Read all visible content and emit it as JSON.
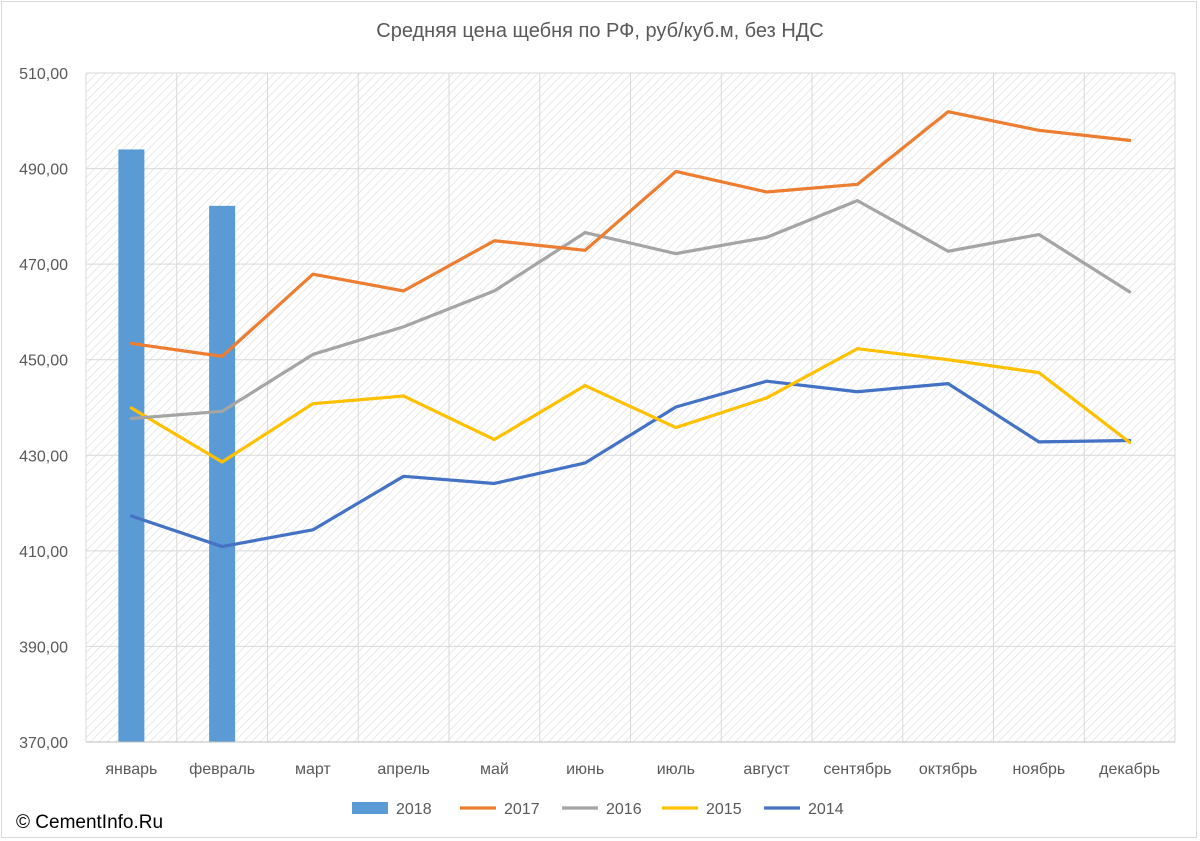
{
  "copyright": "© CementInfo.Ru",
  "chart_data": {
    "type": "bar+line",
    "title": "Средняя цена щебня по РФ, руб/куб.м, без НДС",
    "xlabel": "",
    "ylabel": "",
    "categories": [
      "январь",
      "февраль",
      "март",
      "апрель",
      "май",
      "июнь",
      "июль",
      "август",
      "сентябрь",
      "октябрь",
      "ноябрь",
      "декабрь"
    ],
    "ylim": [
      370,
      510
    ],
    "yticks": [
      370,
      390,
      410,
      430,
      450,
      470,
      490,
      510
    ],
    "ytick_labels": [
      "370,00",
      "390,00",
      "410,00",
      "430,00",
      "450,00",
      "470,00",
      "490,00",
      "510,00"
    ],
    "grid": true,
    "legend_position": "bottom",
    "series": [
      {
        "name": "2018",
        "type": "bar",
        "color": "#5b9bd5",
        "values": [
          494.0,
          482.2,
          null,
          null,
          null,
          null,
          null,
          null,
          null,
          null,
          null,
          null
        ]
      },
      {
        "name": "2017",
        "type": "line",
        "color": "#ed7d31",
        "values": [
          453.4,
          450.7,
          467.9,
          464.4,
          474.9,
          472.9,
          489.4,
          485.1,
          486.7,
          501.9,
          498.0,
          495.9
        ]
      },
      {
        "name": "2016",
        "type": "line",
        "color": "#a5a5a5",
        "values": [
          437.7,
          439.2,
          451.1,
          456.9,
          464.4,
          476.6,
          472.2,
          475.6,
          483.3,
          472.7,
          476.2,
          464.2
        ]
      },
      {
        "name": "2015",
        "type": "line",
        "color": "#ffc000",
        "values": [
          439.9,
          428.6,
          440.8,
          442.4,
          433.3,
          444.6,
          435.8,
          442.0,
          452.3,
          450.0,
          447.3,
          432.7
        ]
      },
      {
        "name": "2014",
        "type": "line",
        "color": "#4472c4",
        "values": [
          417.3,
          410.9,
          414.4,
          425.6,
          424.1,
          428.4,
          440.1,
          445.5,
          443.3,
          445.0,
          432.8,
          433.1
        ]
      }
    ]
  }
}
